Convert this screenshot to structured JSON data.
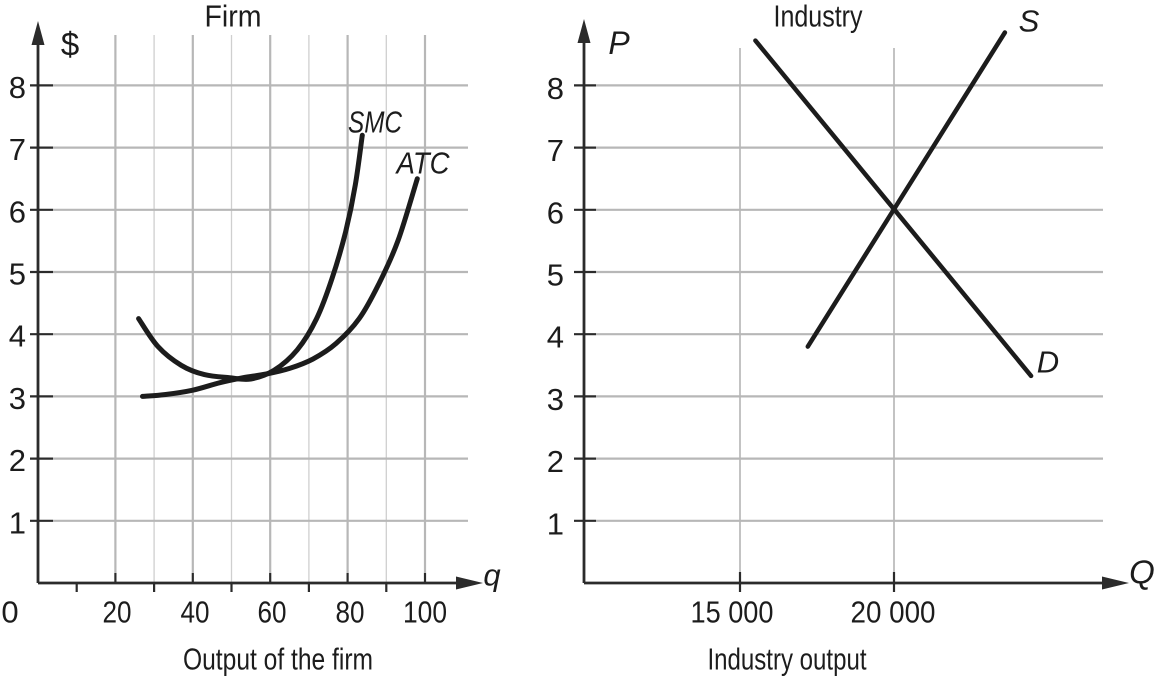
{
  "figure": {
    "background": "#ffffff",
    "curve_color": "#1c1c1c",
    "axis_color": "#2b2b2b",
    "grid_major_color": "#b7b7b7",
    "grid_minor_color": "#cfcfcf",
    "text_color": "#1c1c1c"
  },
  "chart_data": [
    {
      "type": "line",
      "id": "firm",
      "title": "Firm",
      "y_axis_symbol": "$",
      "x_axis_symbol": "q",
      "xlabel": "Output of the firm",
      "ylabel": "",
      "xlim": [
        0,
        113
      ],
      "ylim": [
        0,
        8.9
      ],
      "grid": true,
      "legend_position": "inline-labels",
      "y_ticks": [
        1,
        2,
        3,
        4,
        5,
        6,
        7,
        8
      ],
      "x_ticks": [
        0,
        20,
        40,
        60,
        80,
        100
      ],
      "x_tick_labels": [
        "0",
        "20",
        "40",
        "60",
        "80",
        "100"
      ],
      "x_minor_ticks": [
        10,
        30,
        50,
        70,
        90
      ],
      "series": [
        {
          "name": "SMC",
          "points": [
            [
              26,
              4.25
            ],
            [
              31,
              3.8
            ],
            [
              37,
              3.5
            ],
            [
              43,
              3.35
            ],
            [
              49.5,
              3.3
            ],
            [
              55,
              3.28
            ],
            [
              61,
              3.42
            ],
            [
              67,
              3.75
            ],
            [
              72,
              4.25
            ],
            [
              76,
              4.9
            ],
            [
              79.5,
              5.65
            ],
            [
              82,
              6.4
            ],
            [
              83.8,
              7.2
            ]
          ]
        },
        {
          "name": "ATC",
          "points": [
            [
              27,
              3.0
            ],
            [
              33,
              3.03
            ],
            [
              40,
              3.1
            ],
            [
              47,
              3.22
            ],
            [
              53,
              3.3
            ],
            [
              59,
              3.36
            ],
            [
              65,
              3.45
            ],
            [
              71,
              3.6
            ],
            [
              77,
              3.85
            ],
            [
              83,
              4.25
            ],
            [
              88,
              4.8
            ],
            [
              93,
              5.5
            ],
            [
              98,
              6.5
            ]
          ]
        }
      ],
      "annotations": {
        "curves_cross_at": {
          "q": 50,
          "value": 3.3
        }
      }
    },
    {
      "type": "line",
      "id": "industry",
      "title": "Industry",
      "y_axis_symbol": "P",
      "x_axis_symbol": "Q",
      "xlabel": "Industry output",
      "ylabel": "",
      "xlim": [
        10000,
        26700
      ],
      "ylim": [
        0,
        8.9
      ],
      "grid": true,
      "legend_position": "inline-labels",
      "y_ticks": [
        1,
        2,
        3,
        4,
        5,
        6,
        7,
        8
      ],
      "x_ticks": [
        15000,
        20000
      ],
      "x_tick_labels": [
        "15 000",
        "20 000"
      ],
      "x_minor_ticks": [],
      "series": [
        {
          "name": "S",
          "points": [
            [
              17200,
              3.8
            ],
            [
              23600,
              8.85
            ]
          ]
        },
        {
          "name": "D",
          "points": [
            [
              15500,
              8.72
            ],
            [
              24450,
              3.33
            ]
          ]
        }
      ],
      "annotations": {
        "equilibrium": {
          "Q": 20000,
          "P": 6
        }
      }
    }
  ]
}
